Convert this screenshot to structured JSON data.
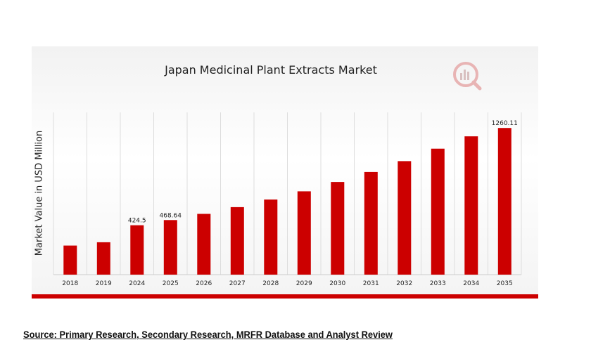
{
  "chart_data": {
    "type": "bar",
    "title": "Japan Medicinal Plant Extracts Market",
    "ylabel": "Market Value in USD Million",
    "xlabel": "",
    "categories": [
      "2018",
      "2019",
      "2024",
      "2025",
      "2026",
      "2027",
      "2028",
      "2029",
      "2030",
      "2031",
      "2032",
      "2033",
      "2034",
      "2035"
    ],
    "values": [
      250,
      278,
      424.5,
      468.64,
      522,
      580,
      645,
      716,
      796,
      882,
      975,
      1082,
      1188,
      1260.11
    ],
    "data_labels": {
      "2024": "424.5",
      "2025": "468.64",
      "2035": "1260.11"
    },
    "ylim": [
      0,
      1400
    ],
    "grid": "vertical",
    "bar_color": "#cc0000"
  },
  "source": "Source: Primary Research, Secondary Research, MRFR Database and Analyst Review",
  "logo_icon": "mrfr-logo-icon"
}
